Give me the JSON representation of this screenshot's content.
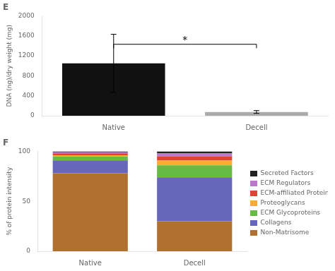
{
  "chart_data": [
    {
      "type": "bar",
      "title": "E",
      "categories": [
        "Native",
        "Decell"
      ],
      "values": [
        1050,
        75
      ],
      "errors": [
        580,
        28
      ],
      "colors": [
        "#111111",
        "#aaaaaa"
      ],
      "ylabel": "DNA (ng)/dry weight (mg)",
      "ylim": [
        0,
        2000
      ],
      "yticks": [
        0,
        400,
        800,
        1200,
        1600,
        2000
      ],
      "grid": false,
      "annotations": [
        {
          "text": "*",
          "between": [
            "Native",
            "Decell"
          ],
          "y": 1470,
          "line_y": 1430,
          "line_drop": 80
        }
      ]
    },
    {
      "type": "bar",
      "title": "F",
      "stacked": true,
      "categories": [
        "Native",
        "Decell"
      ],
      "series": [
        {
          "name": "Non-Matrisome",
          "color": "#b07030",
          "values": [
            78,
            30
          ]
        },
        {
          "name": "Collagens",
          "color": "#6666bb",
          "values": [
            13,
            44
          ]
        },
        {
          "name": "ECM Glycoproteins",
          "color": "#66bb44",
          "values": [
            4,
            12
          ]
        },
        {
          "name": "Proteoglycans",
          "color": "#ffaa33",
          "values": [
            1,
            5
          ]
        },
        {
          "name": "ECM-affiliated Proteins",
          "color": "#dd4433",
          "values": [
            2,
            4
          ]
        },
        {
          "name": "ECM Regulators",
          "color": "#bb77cc",
          "values": [
            1,
            3
          ]
        },
        {
          "name": "Secreted Factors",
          "color": "#222222",
          "values": [
            1,
            2
          ]
        }
      ],
      "ylabel": "% of protein intensity",
      "ylim": [
        0,
        100
      ],
      "yticks": [
        0,
        50,
        100
      ],
      "grid": false,
      "legend": "right"
    }
  ]
}
